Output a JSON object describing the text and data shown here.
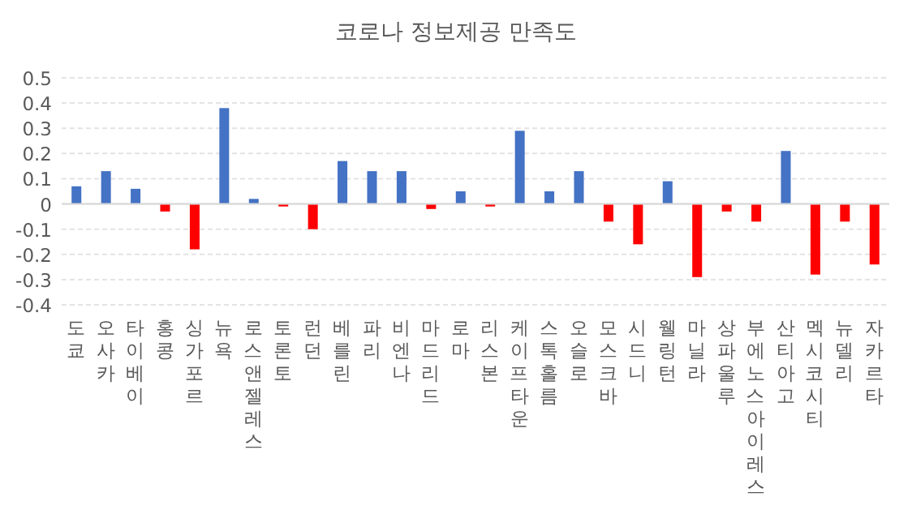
{
  "chart_data": {
    "type": "bar",
    "title": "코로나 정보제공 만족도",
    "categories": [
      "도쿄",
      "오사카",
      "타이베이",
      "홍콩",
      "싱가포르",
      "뉴욕",
      "로스 앤젤레스",
      "토론토",
      "런던",
      "베를린",
      "파리",
      "비엔나",
      "마드리드",
      "로마",
      "리스본",
      "케이프 타운",
      "스톡홀름",
      "오슬로",
      "모스크바",
      "시드니",
      "웰링턴",
      "마닐라",
      "상파울루",
      "부에노스 아이레스",
      "산티아고",
      "멕시코 시티",
      "뉴델리",
      "자카르타"
    ],
    "values": [
      0.07,
      0.13,
      0.06,
      -0.03,
      -0.18,
      0.38,
      0.02,
      -0.01,
      -0.1,
      0.17,
      0.13,
      0.13,
      -0.02,
      0.05,
      -0.01,
      0.29,
      0.05,
      0.13,
      -0.07,
      -0.16,
      0.09,
      -0.29,
      -0.03,
      -0.07,
      0.21,
      -0.28,
      -0.07,
      -0.24
    ],
    "colors": [
      "#4472c4",
      "#4472c4",
      "#4472c4",
      "#ff0000",
      "#ff0000",
      "#4472c4",
      "#4472c4",
      "#ff0000",
      "#ff0000",
      "#4472c4",
      "#4472c4",
      "#4472c4",
      "#ff0000",
      "#4472c4",
      "#ff0000",
      "#4472c4",
      "#4472c4",
      "#4472c4",
      "#ff0000",
      "#ff0000",
      "#4472c4",
      "#ff0000",
      "#ff0000",
      "#ff0000",
      "#4472c4",
      "#ff0000",
      "#ff0000",
      "#ff0000"
    ],
    "ylim": [
      -0.4,
      0.5
    ],
    "yticks": [
      -0.4,
      -0.3,
      -0.2,
      -0.1,
      0,
      0.1,
      0.2,
      0.3,
      0.4,
      0.5
    ],
    "grid": "y"
  }
}
